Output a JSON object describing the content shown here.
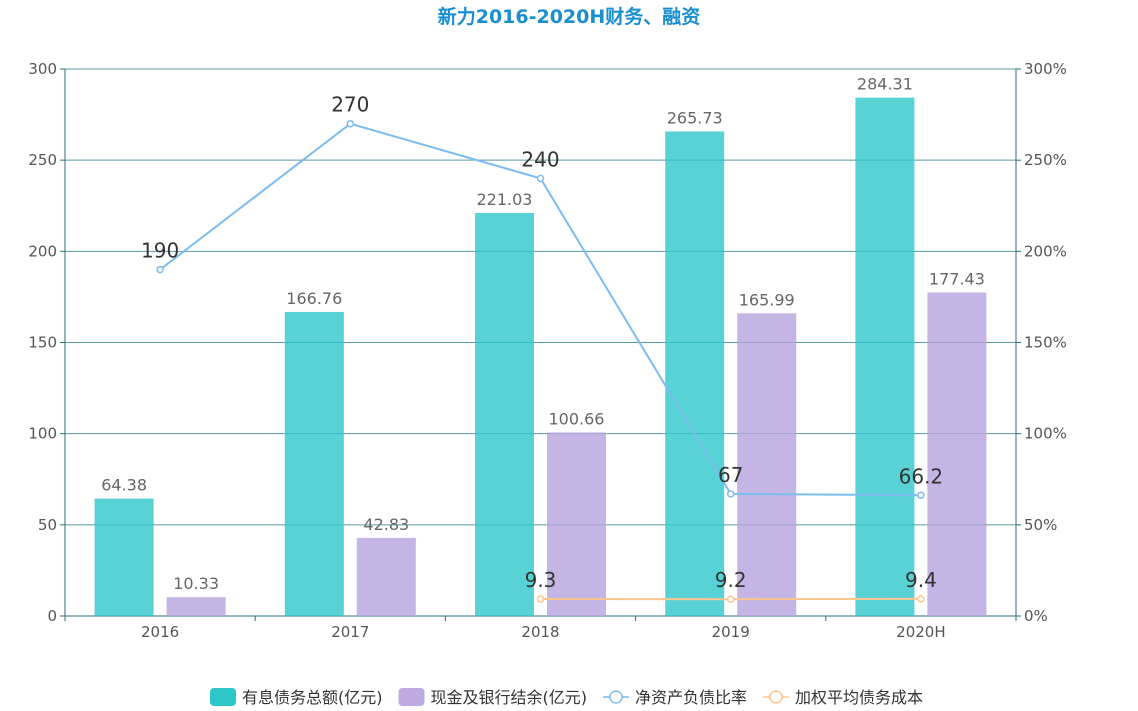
{
  "chart_data": {
    "type": "bar",
    "title": "新力2016-2020H财务、融资",
    "categories": [
      "2016",
      "2017",
      "2018",
      "2019",
      "2020H"
    ],
    "left_axis": {
      "ylim": [
        0,
        300
      ],
      "ticks": [
        "0",
        "50",
        "100",
        "150",
        "200",
        "250",
        "300"
      ]
    },
    "right_axis": {
      "ylim": [
        0,
        300
      ],
      "ticks": [
        "0%",
        "50%",
        "100%",
        "150%",
        "200%",
        "250%",
        "300%"
      ]
    },
    "series": [
      {
        "name": "有息债务总额(亿元)",
        "type": "bar",
        "axis": "left",
        "color": "#2ec7c9",
        "values": [
          64.38,
          166.76,
          221.03,
          265.73,
          284.31
        ],
        "labels": [
          "64.38",
          "166.76",
          "221.03",
          "265.73",
          "284.31"
        ]
      },
      {
        "name": "现金及银行结余(亿元)",
        "type": "bar",
        "axis": "left",
        "color": "#b6a2de",
        "values": [
          10.33,
          42.83,
          100.66,
          165.99,
          177.43
        ],
        "labels": [
          "10.33",
          "42.83",
          "100.66",
          "165.99",
          "177.43"
        ]
      },
      {
        "name": "净资产负债比率",
        "type": "line",
        "axis": "right",
        "color": "#7cbdf0",
        "values": [
          190,
          270,
          240,
          67,
          66.2
        ],
        "labels": [
          "190",
          "270",
          "240",
          "67",
          "66.2"
        ]
      },
      {
        "name": "加权平均债务成本",
        "type": "line",
        "axis": "right",
        "color": "#ffc58d",
        "values": [
          null,
          null,
          9.3,
          9.2,
          9.4
        ],
        "labels": [
          null,
          null,
          "9.3",
          "9.2",
          "9.4"
        ]
      }
    ],
    "grid": true,
    "legend_position": "bottom"
  }
}
